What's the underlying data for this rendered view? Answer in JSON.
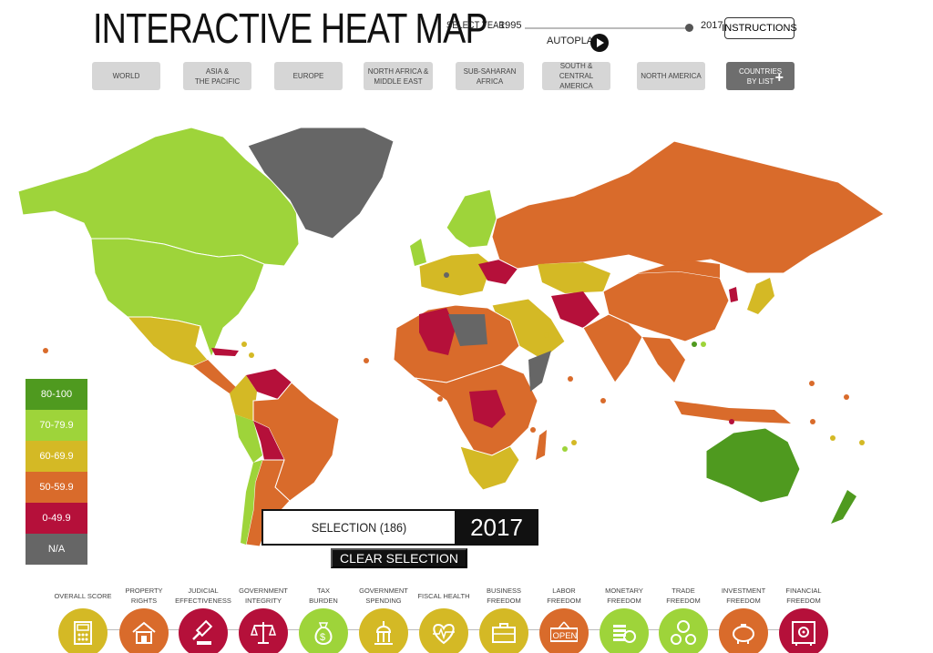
{
  "header": {
    "title": "INTERACTIVE HEAT MAP",
    "select_year_label": "SELECT YEAR:",
    "year_min": "1995",
    "year_max": "2017",
    "instructions_label": "INSTRUCTIONS",
    "autoplay_label": "AUTOPLAY"
  },
  "regions": [
    {
      "label": "WORLD"
    },
    {
      "label": "ASIA &\nTHE PACIFIC"
    },
    {
      "label": "EUROPE"
    },
    {
      "label": "NORTH AFRICA &\nMIDDLE EAST"
    },
    {
      "label": "SUB-SAHARAN\nAFRICA"
    },
    {
      "label": "SOUTH & CENTRAL\nAMERICA"
    },
    {
      "label": "NORTH AMERICA"
    },
    {
      "label": "COUNTRIES\nBY LIST"
    }
  ],
  "legend": [
    {
      "label": "80-100",
      "color": "#4f9a1f"
    },
    {
      "label": "70-79.9",
      "color": "#9ed43a"
    },
    {
      "label": "60-69.9",
      "color": "#d4b925"
    },
    {
      "label": "50-59.9",
      "color": "#d96b2b"
    },
    {
      "label": "0-49.9",
      "color": "#b5103a"
    },
    {
      "label": "N/A",
      "color": "#666666"
    }
  ],
  "selection": {
    "label": "SELECTION (186)",
    "year": "2017",
    "clear_label": "CLEAR SELECTION"
  },
  "factors": [
    {
      "label": "OVERALL SCORE",
      "icon": "calculator-icon",
      "color": "#d4b925"
    },
    {
      "label": "PROPERTY\nRIGHTS",
      "icon": "house-icon",
      "color": "#d96b2b"
    },
    {
      "label": "JUDICIAL\nEFFECTIVENESS",
      "icon": "gavel-icon",
      "color": "#b5103a"
    },
    {
      "label": "GOVERNMENT\nINTEGRITY",
      "icon": "scales-icon",
      "color": "#b5103a"
    },
    {
      "label": "TAX\nBURDEN",
      "icon": "money-bag-icon",
      "color": "#9ed43a"
    },
    {
      "label": "GOVERNMENT\nSPENDING",
      "icon": "capitol-icon",
      "color": "#d4b925"
    },
    {
      "label": "FISCAL HEALTH",
      "icon": "heartbeat-icon",
      "color": "#d4b925"
    },
    {
      "label": "BUSINESS\nFREEDOM",
      "icon": "briefcase-icon",
      "color": "#d4b925"
    },
    {
      "label": "LABOR\nFREEDOM",
      "icon": "open-sign-icon",
      "color": "#d96b2b"
    },
    {
      "label": "MONETARY\nFREEDOM",
      "icon": "coins-icon",
      "color": "#9ed43a"
    },
    {
      "label": "TRADE\nFREEDOM",
      "icon": "currency-exchange-icon",
      "color": "#9ed43a"
    },
    {
      "label": "INVESTMENT\nFREEDOM",
      "icon": "piggy-bank-icon",
      "color": "#d96b2b"
    },
    {
      "label": "FINANCIAL\nFREEDOM",
      "icon": "safe-icon",
      "color": "#b5103a"
    }
  ],
  "open_sign_text": "OPEN"
}
